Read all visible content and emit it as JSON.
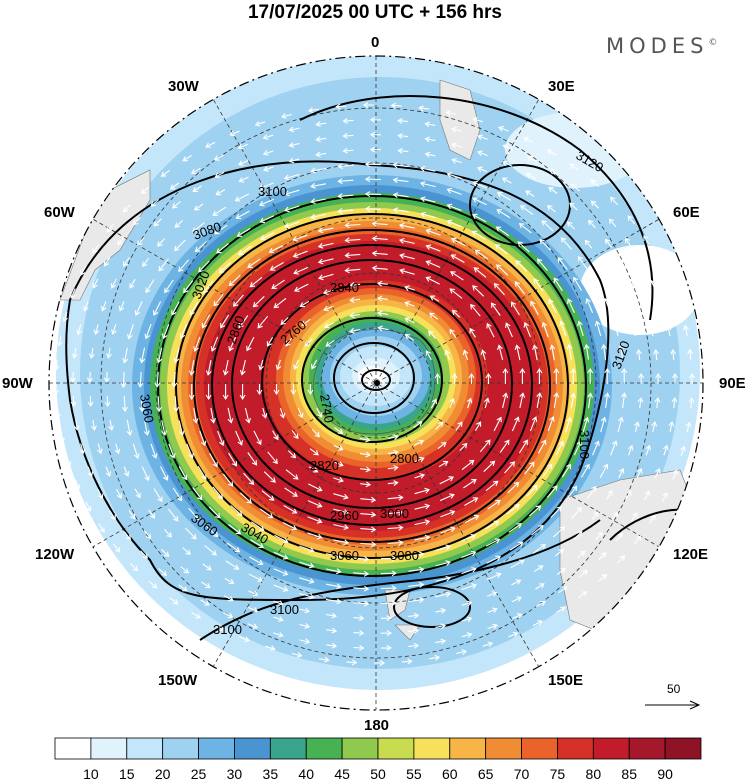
{
  "title": "17/07/2025  00 UTC  + 156 hrs",
  "brand": "MODES",
  "brand_mark": "©",
  "longitude_labels": {
    "lon_0": "0",
    "lon_30e": "30E",
    "lon_60e": "60E",
    "lon_90e": "90E",
    "lon_120e": "120E",
    "lon_150e": "150E",
    "lon_180": "180",
    "lon_150w": "150W",
    "lon_120w": "120W",
    "lon_90w": "90W",
    "lon_60w": "60W",
    "lon_30w": "30W"
  },
  "contour_labels": [
    "3120",
    "3120",
    "3120",
    "3100",
    "3100",
    "3100",
    "3080",
    "3080",
    "3060",
    "3060",
    "3040",
    "3020",
    "2960",
    "2840",
    "2760",
    "2740",
    "2820",
    "2800",
    "3000",
    "3060",
    "3080",
    "3100",
    "2860"
  ],
  "colorbar": {
    "colors": [
      "#ffffff",
      "#e0f2fc",
      "#c3e6fa",
      "#9fd2f1",
      "#6db4e4",
      "#4a95d1",
      "#3aa48d",
      "#46b253",
      "#8fc94e",
      "#c9dc4f",
      "#f7e15a",
      "#f7b447",
      "#f08c33",
      "#e9632b",
      "#d63127",
      "#c21b2a",
      "#a5172b",
      "#8e1325"
    ],
    "labels": [
      "10",
      "15",
      "20",
      "25",
      "30",
      "35",
      "40",
      "45",
      "50",
      "55",
      "60",
      "65",
      "70",
      "75",
      "80",
      "85",
      "90"
    ]
  },
  "reference_vector": "50"
}
